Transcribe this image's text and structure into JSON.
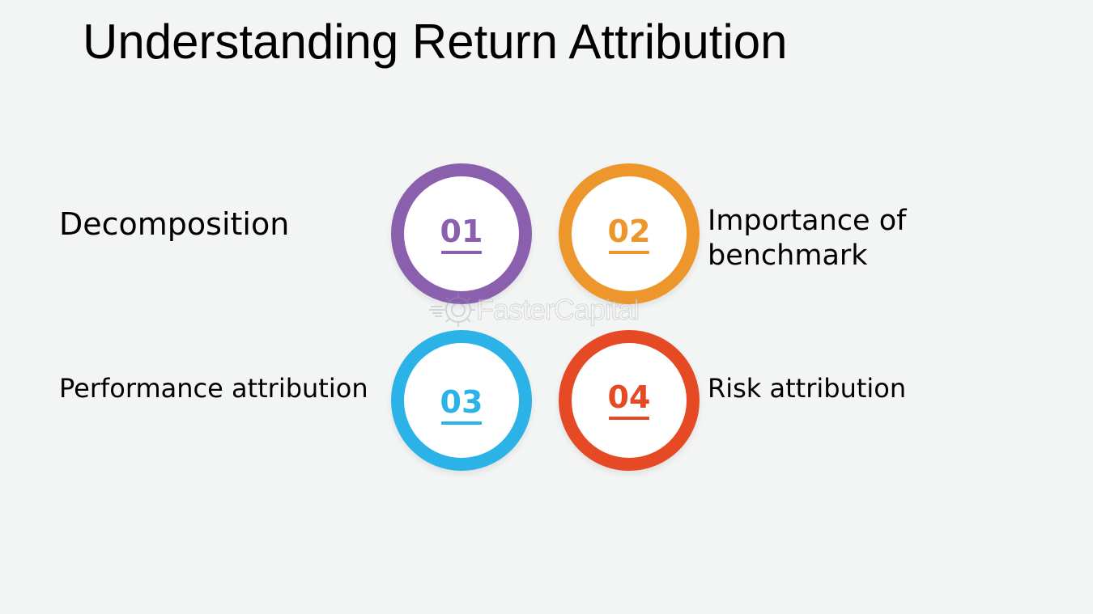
{
  "title": "Understanding Return Attribution",
  "items": [
    {
      "number": "01",
      "label": "Decomposition",
      "color": "#8a5fae"
    },
    {
      "number": "02",
      "label": "Importance of\nbenchmark",
      "color": "#ec962b"
    },
    {
      "number": "03",
      "label": "Performance attribution",
      "color": "#2bb3e8"
    },
    {
      "number": "04",
      "label": "Risk attribution",
      "color": "#e54a24"
    }
  ],
  "watermark": {
    "text": "FasterCapital",
    "icon": "gear-logo-icon"
  }
}
